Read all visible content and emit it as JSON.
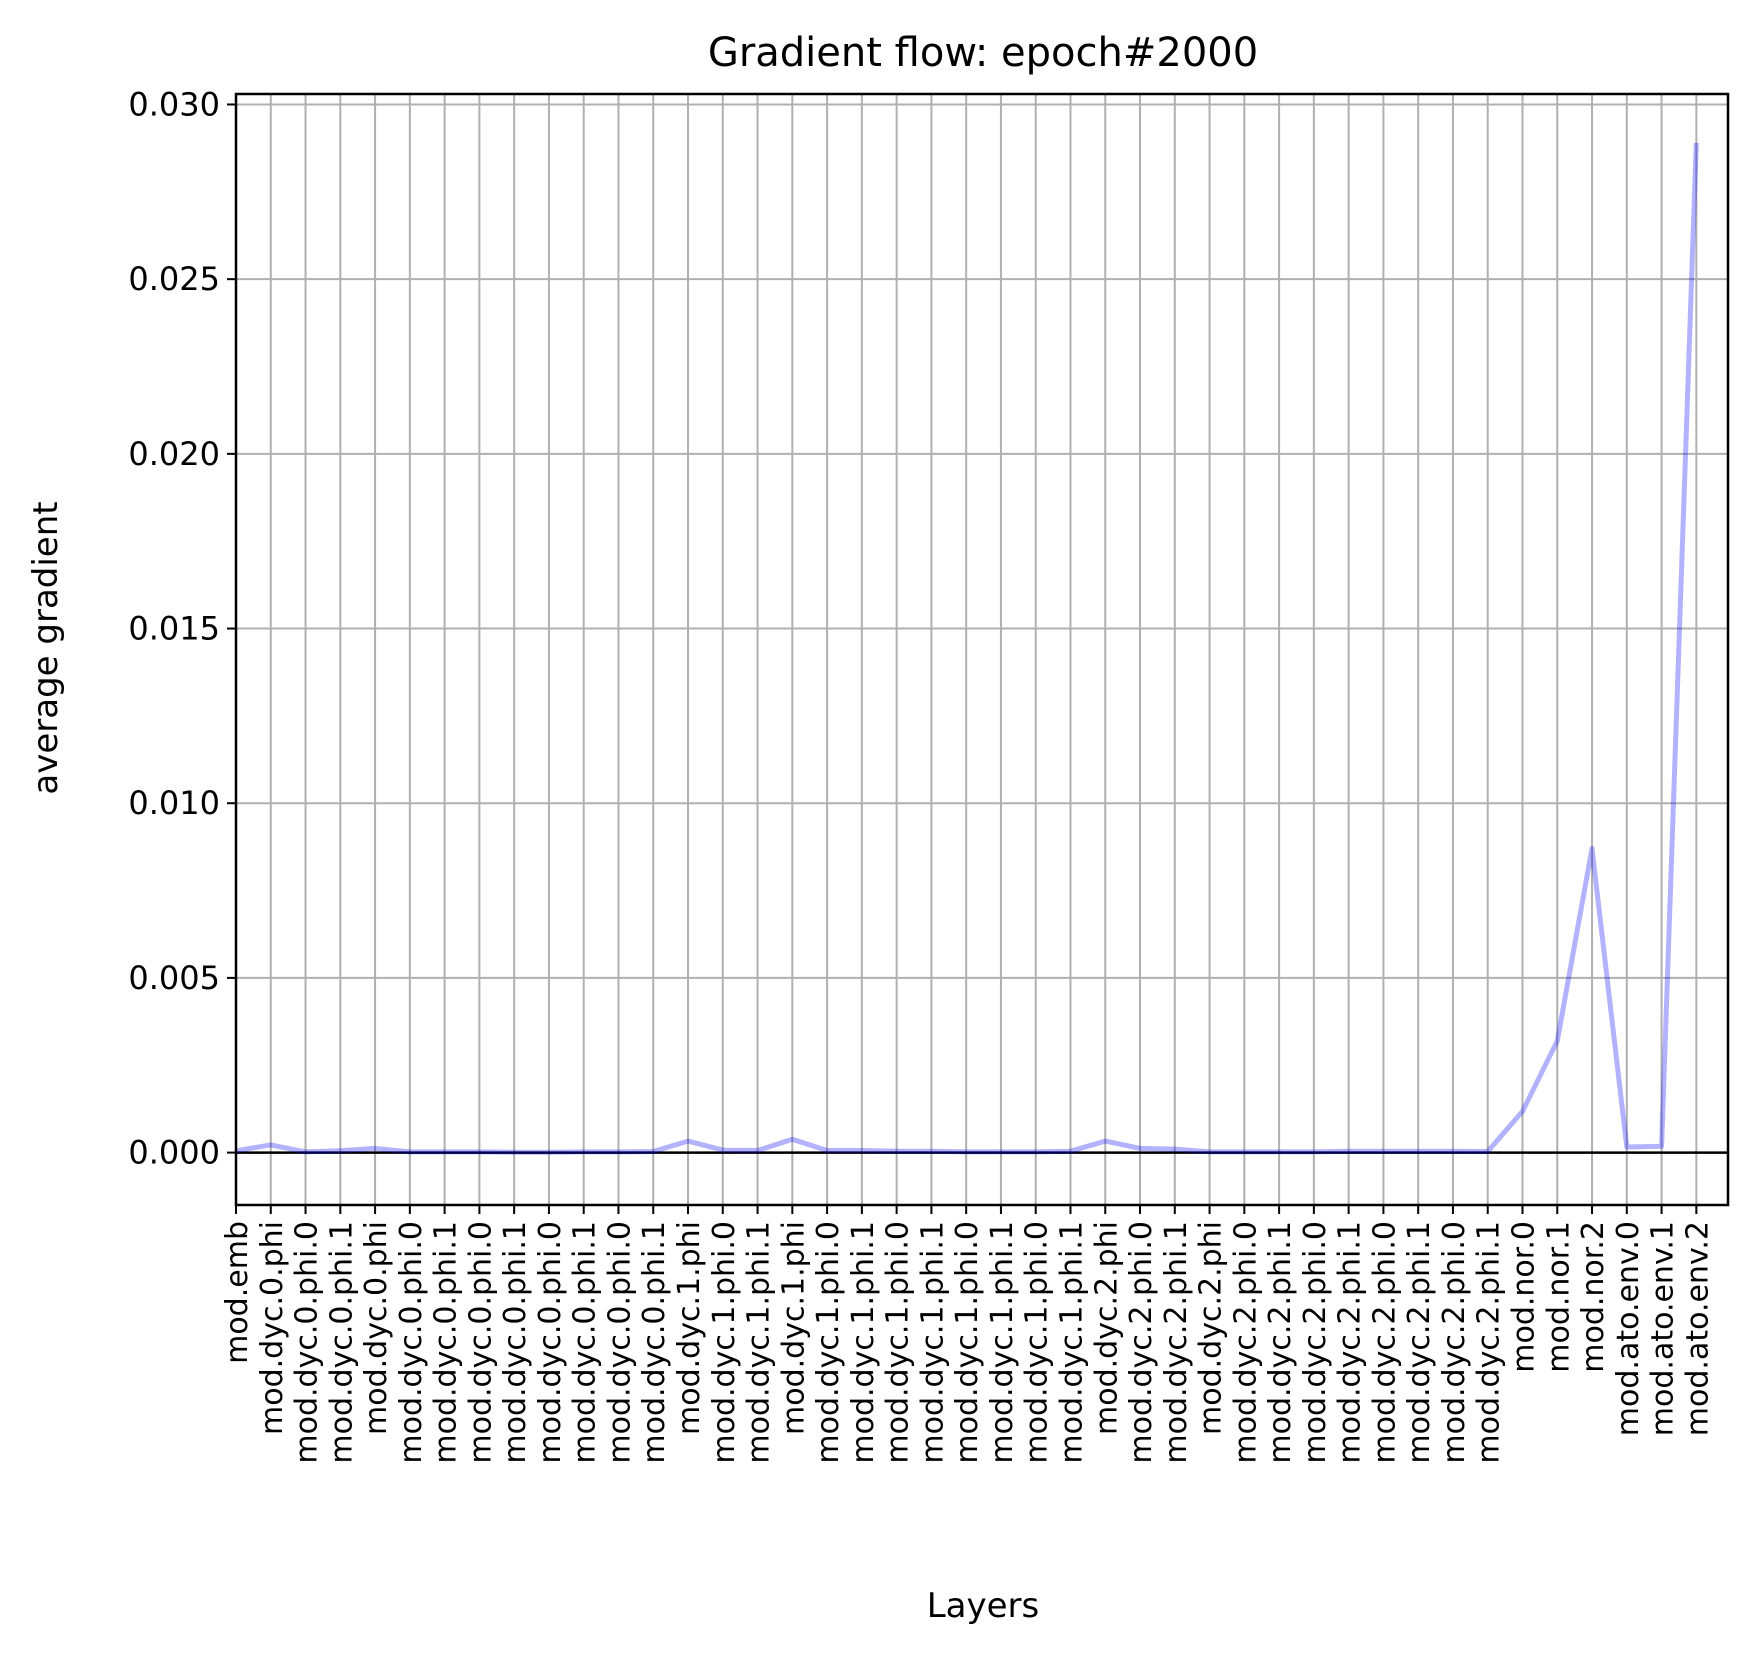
{
  "chart_data": {
    "type": "line",
    "title": "Gradient flow: epoch#2000",
    "xlabel": "Layers",
    "ylabel": "average gradient",
    "ylim": [
      -0.0015,
      0.0303
    ],
    "yticks": [
      0.0,
      0.005,
      0.01,
      0.015,
      0.02,
      0.025,
      0.03
    ],
    "ytick_labels": [
      "0.000",
      "0.005",
      "0.010",
      "0.015",
      "0.020",
      "0.025",
      "0.030"
    ],
    "grid": true,
    "line_color": "#0000ff",
    "line_opacity": 0.3,
    "zero_line_color": "#000000",
    "grid_color": "#b0b0b0",
    "categories": [
      "mod.emb",
      "mod.dyc.0.phi",
      "mod.dyc.0.phi.0",
      "mod.dyc.0.phi.1",
      "mod.dyc.0.phi",
      "mod.dyc.0.phi.0",
      "mod.dyc.0.phi.1",
      "mod.dyc.0.phi.0",
      "mod.dyc.0.phi.1",
      "mod.dyc.0.phi.0",
      "mod.dyc.0.phi.1",
      "mod.dyc.0.phi.0",
      "mod.dyc.0.phi.1",
      "mod.dyc.1.phi",
      "mod.dyc.1.phi.0",
      "mod.dyc.1.phi.1",
      "mod.dyc.1.phi",
      "mod.dyc.1.phi.0",
      "mod.dyc.1.phi.1",
      "mod.dyc.1.phi.0",
      "mod.dyc.1.phi.1",
      "mod.dyc.1.phi.0",
      "mod.dyc.1.phi.1",
      "mod.dyc.1.phi.0",
      "mod.dyc.1.phi.1",
      "mod.dyc.2.phi",
      "mod.dyc.2.phi.0",
      "mod.dyc.2.phi.1",
      "mod.dyc.2.phi",
      "mod.dyc.2.phi.0",
      "mod.dyc.2.phi.1",
      "mod.dyc.2.phi.0",
      "mod.dyc.2.phi.1",
      "mod.dyc.2.phi.0",
      "mod.dyc.2.phi.1",
      "mod.dyc.2.phi.0",
      "mod.dyc.2.phi.1",
      "mod.nor.0",
      "mod.nor.1",
      "mod.nor.2",
      "mod.ato.env.0",
      "mod.ato.env.1",
      "mod.ato.env.2"
    ],
    "values": [
      5e-05,
      0.00022,
      2e-05,
      5e-05,
      0.00012,
      2e-05,
      2e-05,
      2e-05,
      1e-05,
      1e-05,
      2e-05,
      2e-05,
      3e-05,
      0.00033,
      7e-05,
      6e-05,
      0.00038,
      6e-05,
      6e-05,
      4e-05,
      4e-05,
      2e-05,
      2e-05,
      2e-05,
      4e-05,
      0.00033,
      0.00012,
      0.0001,
      2e-05,
      2e-05,
      2e-05,
      2e-05,
      4e-05,
      4e-05,
      4e-05,
      4e-05,
      3e-05,
      0.00118,
      0.0032,
      0.0087,
      0.00016,
      0.00018,
      0.0289
    ]
  }
}
